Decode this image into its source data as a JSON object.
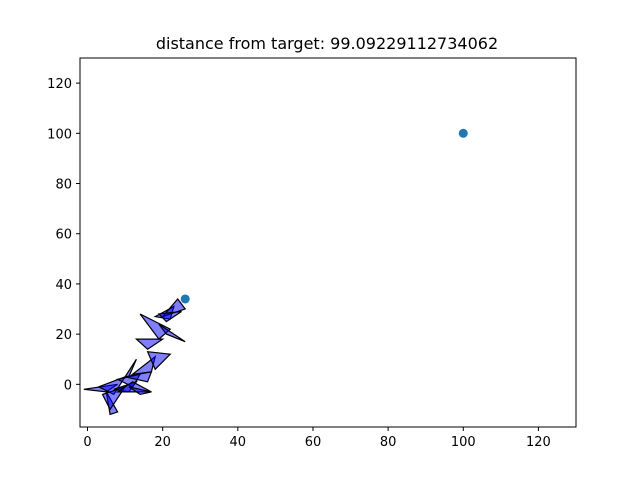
{
  "chart_data": {
    "type": "scatter",
    "title": "distance from target: 99.09229112734062",
    "xlabel": "",
    "ylabel": "",
    "xlim": [
      -2,
      130
    ],
    "ylim": [
      -17,
      130
    ],
    "xticks": [
      0,
      20,
      40,
      60,
      80,
      100,
      120
    ],
    "yticks": [
      0,
      20,
      40,
      60,
      80,
      100,
      120
    ],
    "grid": false,
    "points": [
      {
        "x": 100,
        "y": 100
      },
      {
        "x": 26,
        "y": 34
      }
    ],
    "polygons": [
      [
        [
          -1,
          -2
        ],
        [
          8,
          0
        ],
        [
          5,
          -3
        ]
      ],
      [
        [
          3,
          -1
        ],
        [
          10,
          3
        ],
        [
          7,
          -4
        ]
      ],
      [
        [
          5,
          -3
        ],
        [
          8,
          -11
        ],
        [
          6,
          -12
        ]
      ],
      [
        [
          4,
          -4
        ],
        [
          10,
          -1
        ],
        [
          6,
          -10
        ]
      ],
      [
        [
          7,
          -2
        ],
        [
          13,
          1
        ],
        [
          11,
          -3
        ]
      ],
      [
        [
          8,
          2
        ],
        [
          14,
          4
        ],
        [
          12,
          -1
        ]
      ],
      [
        [
          8,
          -3
        ],
        [
          17,
          -3
        ],
        [
          12,
          1
        ]
      ],
      [
        [
          10,
          3
        ],
        [
          13,
          10
        ],
        [
          11,
          3
        ]
      ],
      [
        [
          10,
          3
        ],
        [
          17,
          5
        ],
        [
          16,
          1
        ]
      ],
      [
        [
          11,
          -1
        ],
        [
          14,
          -4
        ],
        [
          17,
          -3
        ]
      ],
      [
        [
          12,
          4
        ],
        [
          17,
          5
        ],
        [
          18,
          11
        ]
      ],
      [
        [
          13,
          18
        ],
        [
          20,
          18
        ],
        [
          16,
          14
        ]
      ],
      [
        [
          16,
          13
        ],
        [
          22,
          12
        ],
        [
          18,
          6
        ]
      ],
      [
        [
          14,
          28
        ],
        [
          22,
          22
        ],
        [
          19,
          18
        ]
      ],
      [
        [
          19,
          24
        ],
        [
          26,
          17
        ],
        [
          21,
          20
        ]
      ],
      [
        [
          18,
          27
        ],
        [
          23,
          31
        ],
        [
          22,
          26
        ]
      ],
      [
        [
          20,
          27
        ],
        [
          26,
          30
        ],
        [
          24,
          34
        ]
      ],
      [
        [
          19,
          28
        ],
        [
          25,
          29
        ],
        [
          21,
          25
        ]
      ]
    ],
    "colors": {
      "points": "#1f77b4",
      "polygon_fill": "rgba(0,0,255,0.5)",
      "polygon_edge": "#000000"
    }
  }
}
